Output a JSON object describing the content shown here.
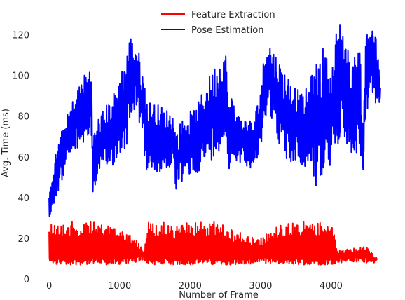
{
  "chart_data": {
    "type": "line",
    "title": "",
    "xlabel": "Number of Frame",
    "ylabel": "Avg. Time (ms)",
    "xlim": [
      -200,
      4950
    ],
    "ylim": [
      0,
      135
    ],
    "xticks": [
      0,
      1000,
      2000,
      3000,
      4000
    ],
    "yticks": [
      0,
      20,
      40,
      60,
      80,
      100,
      120
    ],
    "grid": false,
    "legend_position": "top-center",
    "series": [
      {
        "name": "Feature Extraction",
        "color": "#ff0000",
        "band": "noisy_oscillation",
        "x": [
          0,
          200,
          400,
          600,
          800,
          1000,
          1200,
          1350,
          1400,
          1600,
          1800,
          2000,
          2200,
          2400,
          2600,
          2800,
          3000,
          3200,
          3400,
          3600,
          3800,
          4000,
          4100,
          4300,
          4500,
          4650
        ],
        "low": [
          7,
          7,
          7,
          7,
          7,
          7,
          8,
          9,
          7,
          7,
          7,
          7,
          7,
          7,
          7,
          7,
          8,
          7,
          7,
          7,
          7,
          7,
          8,
          8,
          8,
          8
        ],
        "high": [
          28,
          28,
          28,
          28,
          27,
          26,
          22,
          14,
          28,
          28,
          26,
          28,
          28,
          28,
          24,
          22,
          20,
          26,
          28,
          28,
          28,
          28,
          14,
          15,
          16,
          10
        ]
      },
      {
        "name": "Pose Estimation",
        "color": "#0000ff",
        "band": "noisy_sawtooth",
        "x": [
          0,
          50,
          150,
          300,
          450,
          600,
          620,
          700,
          900,
          1000,
          1100,
          1150,
          1250,
          1300,
          1400,
          1600,
          1750,
          1800,
          1900,
          2100,
          2200,
          2350,
          2450,
          2500,
          2550,
          2600,
          2700,
          2900,
          3000,
          3050,
          3100,
          3300,
          3400,
          3500,
          3600,
          3700,
          3800,
          3900,
          4000,
          4100,
          4150,
          4250,
          4300,
          4400,
          4450,
          4500,
          4600,
          4650,
          4700
        ],
        "low": [
          28,
          35,
          45,
          60,
          65,
          70,
          42,
          50,
          55,
          60,
          65,
          80,
          85,
          70,
          50,
          52,
          55,
          43,
          48,
          52,
          55,
          60,
          65,
          70,
          50,
          60,
          57,
          54,
          60,
          75,
          85,
          62,
          55,
          58,
          52,
          57,
          43,
          50,
          55,
          65,
          75,
          62,
          55,
          65,
          45,
          80,
          85,
          86,
          87
        ],
        "high": [
          40,
          55,
          70,
          85,
          98,
          106,
          70,
          80,
          90,
          100,
          112,
          120,
          115,
          108,
          88,
          85,
          82,
          72,
          80,
          85,
          95,
          105,
          110,
          115,
          88,
          90,
          80,
          78,
          95,
          110,
          119,
          105,
          100,
          95,
          90,
          98,
          108,
          115,
          100,
          130,
          128,
          112,
          105,
          120,
          80,
          124,
          130,
          115,
          97
        ]
      }
    ]
  }
}
